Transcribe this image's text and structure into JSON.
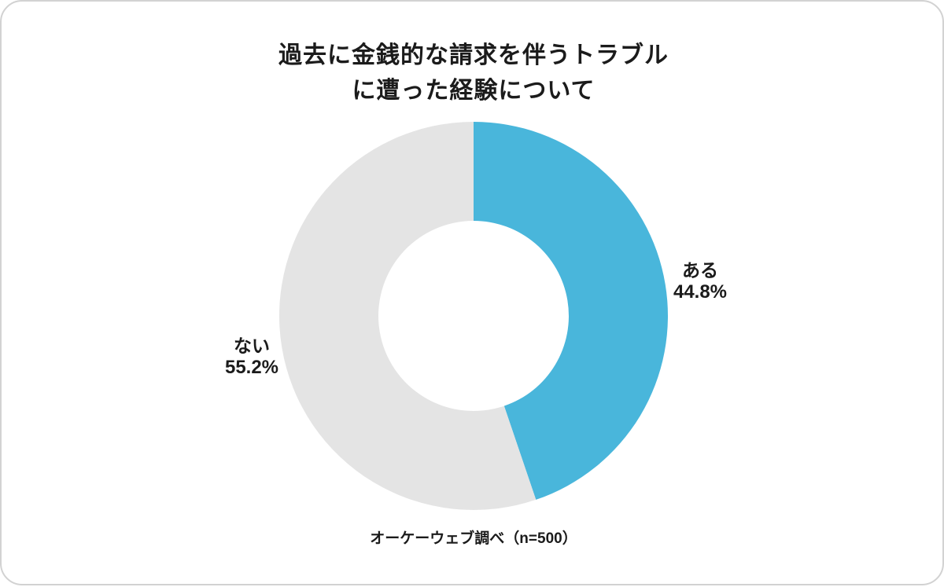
{
  "chart_data": {
    "type": "pie",
    "subtype": "donut",
    "title_lines": [
      "過去に金銭的な請求を伴うトラブル",
      "に遭った経験について"
    ],
    "categories": [
      "ある",
      "ない"
    ],
    "values": [
      44.8,
      55.2
    ],
    "colors": [
      "#49b6db",
      "#e4e4e4"
    ],
    "start_angle_deg": 0,
    "direction": "clockwise",
    "donut_hole_ratio": 0.49,
    "labels": [
      {
        "name": "ある",
        "percent": "44.8%"
      },
      {
        "name": "ない",
        "percent": "55.2%"
      }
    ],
    "source": "オーケーウェブ調べ（n=500）",
    "legend_position": "none",
    "total": 100
  }
}
